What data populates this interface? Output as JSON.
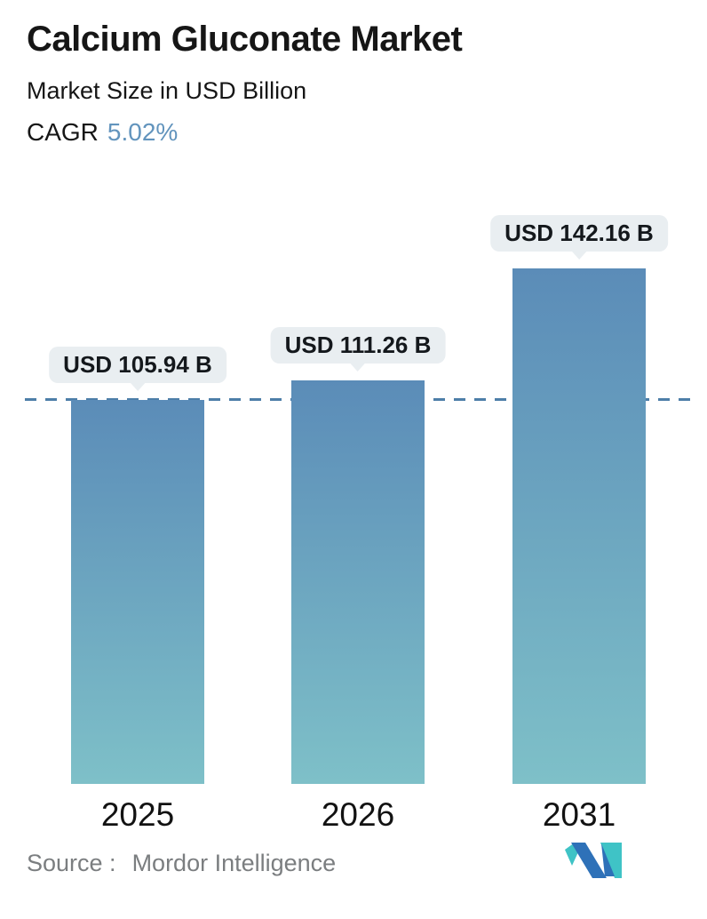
{
  "header": {
    "title": "Calcium Gluconate Market",
    "subtitle": "Market Size in USD Billion",
    "cagr_label": "CAGR",
    "cagr_value": "5.02%"
  },
  "chart_data": {
    "type": "bar",
    "title": "Calcium Gluconate Market",
    "subtitle": "Market Size in USD Billion",
    "unit": "USD Billion",
    "categories": [
      "2025",
      "2026",
      "2031"
    ],
    "values": [
      105.94,
      111.26,
      142.16
    ],
    "value_labels": [
      "USD 105.94 B",
      "USD 111.26 B",
      "USD 142.16 B"
    ],
    "baseline_value": 105.94,
    "baseline_note": "horizontal dashed reference line at 2025 value",
    "ylim": [
      0,
      150
    ],
    "grid": false,
    "legend": "none",
    "bar_gradient_top": "#5b8cb8",
    "bar_gradient_bottom": "#7ec0c8",
    "dashed_line_color": "#4d7ea8",
    "label_bubble_bg": "#e9eef1"
  },
  "footer": {
    "source_label": "Source :",
    "source_value": "Mordor Intelligence",
    "logo": "mordor-intelligence-logo",
    "logo_teal": "#3fc3c6",
    "logo_blue": "#2e71b8"
  },
  "colors": {
    "cagr_accent": "#6294bd",
    "text": "#161616",
    "source_text": "#7b7e80"
  }
}
